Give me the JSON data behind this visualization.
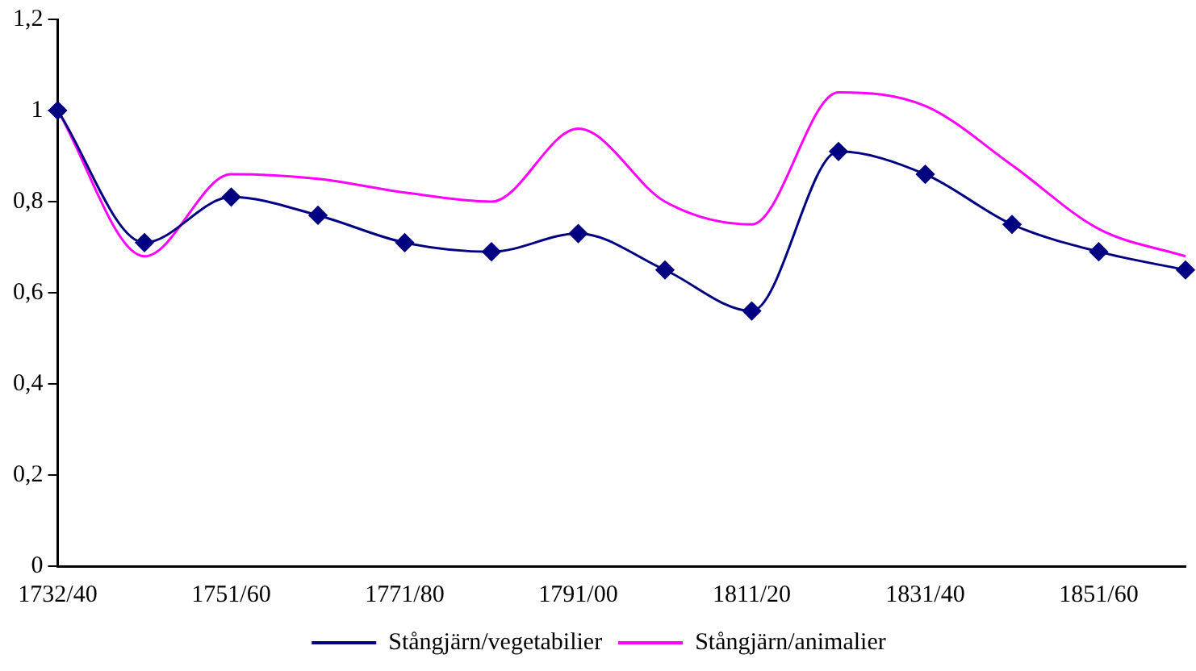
{
  "chart_data": {
    "type": "line",
    "categories": [
      "1732/40",
      null,
      "1751/60",
      null,
      "1771/80",
      null,
      "1791/00",
      null,
      "1811/20",
      null,
      "1831/40",
      null,
      "1851/60",
      null
    ],
    "ylim": [
      0,
      1.2
    ],
    "yticks": [
      {
        "value": 0,
        "label": "0"
      },
      {
        "value": 0.2,
        "label": "0,2"
      },
      {
        "value": 0.4,
        "label": "0,4"
      },
      {
        "value": 0.6,
        "label": "0,6"
      },
      {
        "value": 0.8,
        "label": "0,8"
      },
      {
        "value": 1,
        "label": "1"
      },
      {
        "value": 1.2,
        "label": "1,2"
      }
    ],
    "grid": false,
    "legend": "bottom",
    "series": [
      {
        "name": "Stångjärn/vegetabilier",
        "color": "#000080",
        "marker": "diamond",
        "values": [
          1,
          0.71,
          0.81,
          0.77,
          0.71,
          0.69,
          0.73,
          0.65,
          0.56,
          0.91,
          0.86,
          0.75,
          0.69,
          0.65
        ]
      },
      {
        "name": "Stångjärn/animalier",
        "color": "#ff00ff",
        "marker": "none",
        "values": [
          1,
          0.68,
          0.86,
          0.85,
          0.82,
          0.8,
          0.96,
          0.8,
          0.75,
          1.04,
          1.01,
          0.88,
          0.74,
          0.68
        ]
      }
    ]
  }
}
